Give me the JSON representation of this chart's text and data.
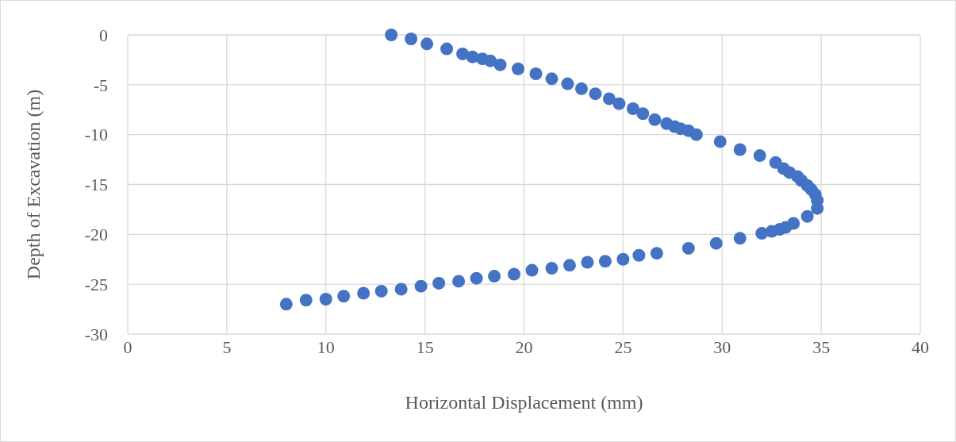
{
  "chart_data": {
    "type": "scatter",
    "xlabel": "Horizontal Displacement (mm)",
    "ylabel": "Depth of Excavation (m)",
    "xlim": [
      0,
      40
    ],
    "xticks": [
      0,
      5,
      10,
      15,
      20,
      25,
      30,
      35,
      40
    ],
    "ylim": [
      -30,
      0
    ],
    "yticks": [
      -30,
      -25,
      -20,
      -15,
      -10,
      -5,
      0
    ],
    "grid": true,
    "marker": "circle",
    "series": [
      {
        "color": "#4472c4",
        "x": [
          13.3,
          14.3,
          15.1,
          16.1,
          16.9,
          17.4,
          17.9,
          18.3,
          18.8,
          19.7,
          20.6,
          21.4,
          22.2,
          22.9,
          23.6,
          24.3,
          24.8,
          25.5,
          26.0,
          26.6,
          27.2,
          27.6,
          27.9,
          28.3,
          28.7,
          29.9,
          30.9,
          31.9,
          32.7,
          33.1,
          33.4,
          33.8,
          34.0,
          34.3,
          34.5,
          34.7,
          34.8,
          34.8,
          34.3,
          33.6,
          33.2,
          32.9,
          32.5,
          32.0,
          30.9,
          29.7,
          28.3,
          26.7,
          25.8,
          25.0,
          24.1,
          23.2,
          22.3,
          21.4,
          20.4,
          19.5,
          18.5,
          17.6,
          16.7,
          15.7,
          14.8,
          13.8,
          12.8,
          11.9,
          10.9,
          10.0,
          9.0,
          8.0
        ],
        "values": [
          0,
          -0.4,
          -0.9,
          -1.4,
          -1.9,
          -2.2,
          -2.4,
          -2.6,
          -3.0,
          -3.4,
          -3.9,
          -4.4,
          -4.9,
          -5.4,
          -5.9,
          -6.4,
          -6.9,
          -7.4,
          -7.9,
          -8.5,
          -8.9,
          -9.2,
          -9.4,
          -9.6,
          -10.0,
          -10.7,
          -11.5,
          -12.1,
          -12.8,
          -13.4,
          -13.8,
          -14.2,
          -14.6,
          -15.1,
          -15.5,
          -16.0,
          -16.6,
          -17.4,
          -18.2,
          -18.9,
          -19.3,
          -19.5,
          -19.7,
          -19.9,
          -20.4,
          -20.9,
          -21.4,
          -21.9,
          -22.1,
          -22.5,
          -22.7,
          -22.8,
          -23.1,
          -23.4,
          -23.6,
          -24.0,
          -24.2,
          -24.4,
          -24.7,
          -24.9,
          -25.2,
          -25.5,
          -25.7,
          -25.9,
          -26.2,
          -26.5,
          -26.6,
          -27.0
        ]
      }
    ]
  }
}
